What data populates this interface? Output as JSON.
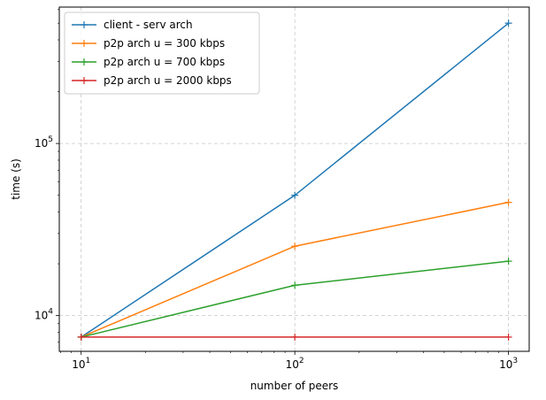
{
  "chart_data": {
    "type": "line",
    "xlabel": "number of peers",
    "ylabel": "time (s)",
    "xscale": "log",
    "yscale": "log",
    "xlim": [
      7.9,
      1250
    ],
    "ylim": [
      6200,
      620000
    ],
    "grid": true,
    "grid_style": "dashed",
    "legend_position": "upper-left",
    "x_ticks": [
      {
        "value": 10,
        "base": "10",
        "exp": "1"
      },
      {
        "value": 100,
        "base": "10",
        "exp": "2"
      },
      {
        "value": 1000,
        "base": "10",
        "exp": "3"
      }
    ],
    "y_ticks": [
      {
        "value": 10000,
        "base": "10",
        "exp": "4"
      },
      {
        "value": 100000,
        "base": "10",
        "exp": "5"
      }
    ],
    "x": [
      10,
      100,
      1000
    ],
    "series": [
      {
        "name": "client - serv arch",
        "color": "#1f77b4",
        "marker": "+",
        "values": [
          7500,
          50000,
          500000
        ]
      },
      {
        "name": "p2p arch u = 300 kbps",
        "color": "#ff7f0e",
        "marker": "+",
        "values": [
          7500,
          25300,
          45500
        ]
      },
      {
        "name": "p2p arch u = 700 kbps",
        "color": "#2ca02c",
        "marker": "+",
        "values": [
          7500,
          15000,
          20700
        ]
      },
      {
        "name": "p2p arch u = 2000 kbps",
        "color": "#d62728",
        "marker": "+",
        "values": [
          7500,
          7500,
          7500
        ]
      }
    ]
  }
}
